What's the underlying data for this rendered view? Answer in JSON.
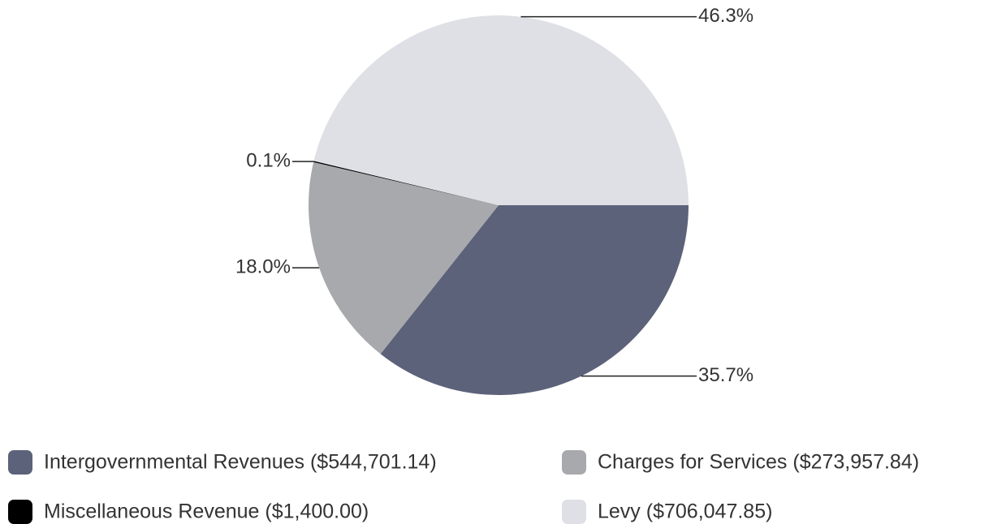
{
  "chart_data": {
    "type": "pie",
    "categories": [
      "Intergovernmental Revenues ($544,701.14)",
      "Charges for Services ($273,957.84)",
      "Miscellaneous Revenue ($1,400.00)",
      "Levy ($706,047.85)"
    ],
    "values": [
      35.7,
      18.0,
      0.1,
      46.3
    ],
    "value_labels": [
      "35.7%",
      "18.0%",
      "0.1%",
      "46.3%"
    ],
    "colors": [
      "#5c6279",
      "#a8a9ad",
      "#000000",
      "#dfe0e5"
    ],
    "legend": "bottom"
  }
}
